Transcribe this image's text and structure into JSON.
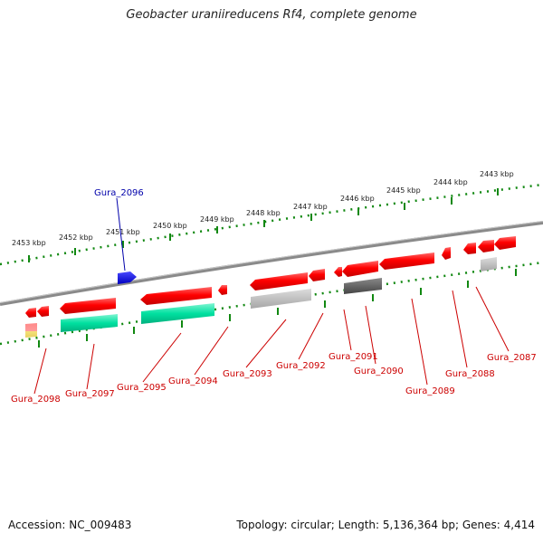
{
  "title": "Geobacter uraniireducens Rf4, complete genome",
  "footer": {
    "accession": "Accession: NC_009483",
    "summary": "Topology: circular; Length: 5,136,364 bp; Genes: 4,414"
  },
  "colors": {
    "gene_red": "#ff0000",
    "gene_blue": "#0000ee",
    "label_red": "#cc0000",
    "label_blue": "#0000aa",
    "tick_green": "#118811",
    "backbone": "#8a8a8a"
  },
  "kbp_labels": [
    "2453 kbp",
    "2452 kbp",
    "2451 kbp",
    "2450 kbp",
    "2449 kbp",
    "2448 kbp",
    "2447 kbp",
    "2446 kbp",
    "2445 kbp",
    "2444 kbp",
    "2443 kbp"
  ],
  "gene_labels": [
    "Gura_2096",
    "Gura_2098",
    "Gura_2097",
    "Gura_2095",
    "Gura_2094",
    "Gura_2093",
    "Gura_2092",
    "Gura_2091",
    "Gura_2090",
    "Gura_2089",
    "Gura_2088",
    "Gura_2087"
  ]
}
